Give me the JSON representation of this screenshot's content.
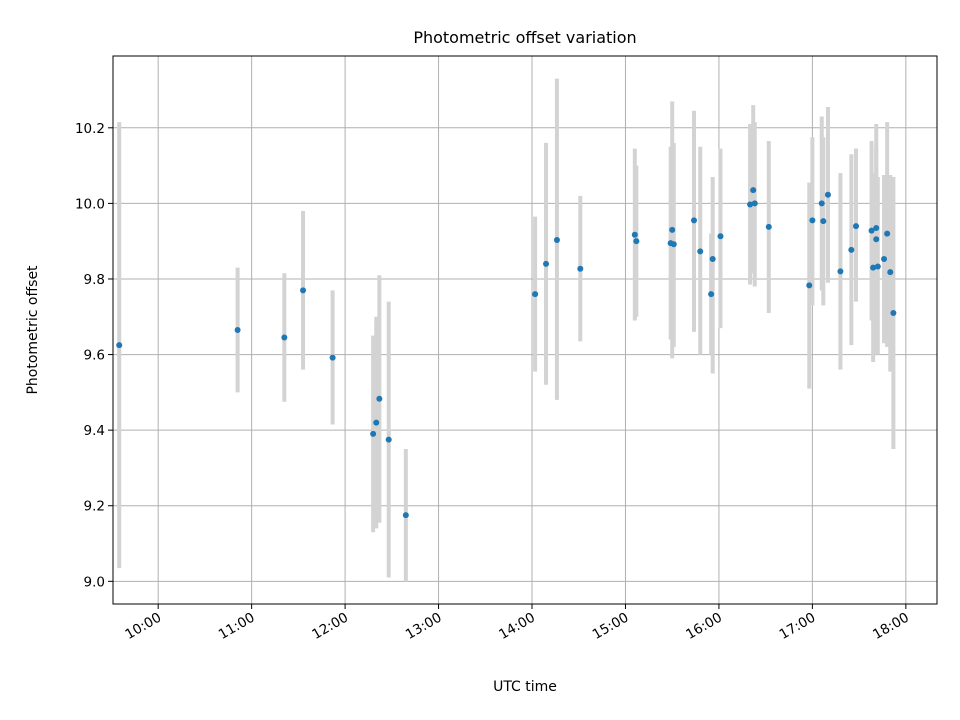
{
  "chart_data": {
    "type": "scatter",
    "title": "Photometric offset variation",
    "xlabel": "UTC time",
    "ylabel": "Photometric offset",
    "x_axis": "time",
    "x_range": [
      "09:31",
      "18:20"
    ],
    "ylim": [
      8.94,
      10.39
    ],
    "grid": true,
    "xticks": [
      "10:00",
      "11:00",
      "12:00",
      "13:00",
      "14:00",
      "15:00",
      "16:00",
      "17:00",
      "18:00"
    ],
    "yticks": [
      "9.0",
      "9.2",
      "9.4",
      "9.6",
      "9.8",
      "10.0",
      "10.2"
    ],
    "colors": {
      "points": "#1f77b4",
      "error_bars": "#d3d3d3",
      "grid": "#b0b0b0"
    },
    "series": [
      {
        "points": [
          {
            "x": "09:35",
            "y": 9.625,
            "lo": 9.035,
            "hi": 10.215
          },
          {
            "x": "10:51",
            "y": 9.665,
            "lo": 9.5,
            "hi": 9.83
          },
          {
            "x": "11:21",
            "y": 9.645,
            "lo": 9.475,
            "hi": 9.815
          },
          {
            "x": "11:33",
            "y": 9.77,
            "lo": 9.56,
            "hi": 9.98
          },
          {
            "x": "11:52",
            "y": 9.592,
            "lo": 9.415,
            "hi": 9.77
          },
          {
            "x": "12:18",
            "y": 9.39,
            "lo": 9.13,
            "hi": 9.65
          },
          {
            "x": "12:20",
            "y": 9.42,
            "lo": 9.14,
            "hi": 9.7
          },
          {
            "x": "12:22",
            "y": 9.483,
            "lo": 9.155,
            "hi": 9.81
          },
          {
            "x": "12:28",
            "y": 9.375,
            "lo": 9.01,
            "hi": 9.74
          },
          {
            "x": "12:39",
            "y": 9.175,
            "lo": 9.0,
            "hi": 9.35
          },
          {
            "x": "14:02",
            "y": 9.76,
            "lo": 9.555,
            "hi": 9.965
          },
          {
            "x": "14:09",
            "y": 9.84,
            "lo": 9.52,
            "hi": 10.16
          },
          {
            "x": "14:16",
            "y": 9.903,
            "lo": 9.48,
            "hi": 10.33
          },
          {
            "x": "14:31",
            "y": 9.827,
            "lo": 9.635,
            "hi": 10.02
          },
          {
            "x": "15:06",
            "y": 9.917,
            "lo": 9.69,
            "hi": 10.145
          },
          {
            "x": "15:07",
            "y": 9.9,
            "lo": 9.7,
            "hi": 10.1
          },
          {
            "x": "15:29",
            "y": 9.895,
            "lo": 9.64,
            "hi": 10.15
          },
          {
            "x": "15:30",
            "y": 9.93,
            "lo": 9.59,
            "hi": 10.27
          },
          {
            "x": "15:31",
            "y": 9.892,
            "lo": 9.62,
            "hi": 10.16
          },
          {
            "x": "15:44",
            "y": 9.955,
            "lo": 9.66,
            "hi": 10.245
          },
          {
            "x": "15:48",
            "y": 9.873,
            "lo": 9.6,
            "hi": 10.15
          },
          {
            "x": "15:55",
            "y": 9.76,
            "lo": 9.6,
            "hi": 9.92
          },
          {
            "x": "15:56",
            "y": 9.853,
            "lo": 9.55,
            "hi": 10.07
          },
          {
            "x": "16:01",
            "y": 9.913,
            "lo": 9.67,
            "hi": 10.145
          },
          {
            "x": "16:20",
            "y": 9.997,
            "lo": 9.785,
            "hi": 10.21
          },
          {
            "x": "16:22",
            "y": 10.035,
            "lo": 9.815,
            "hi": 10.26
          },
          {
            "x": "16:23",
            "y": 10.0,
            "lo": 9.78,
            "hi": 10.215
          },
          {
            "x": "16:32",
            "y": 9.938,
            "lo": 9.71,
            "hi": 10.165
          },
          {
            "x": "16:58",
            "y": 9.783,
            "lo": 9.51,
            "hi": 10.055
          },
          {
            "x": "17:00",
            "y": 9.955,
            "lo": 9.73,
            "hi": 10.175
          },
          {
            "x": "17:06",
            "y": 10.0,
            "lo": 9.77,
            "hi": 10.23
          },
          {
            "x": "17:07",
            "y": 9.953,
            "lo": 9.73,
            "hi": 10.175
          },
          {
            "x": "17:10",
            "y": 10.023,
            "lo": 9.79,
            "hi": 10.255
          },
          {
            "x": "17:18",
            "y": 9.82,
            "lo": 9.56,
            "hi": 10.08
          },
          {
            "x": "17:25",
            "y": 9.877,
            "lo": 9.625,
            "hi": 10.13
          },
          {
            "x": "17:28",
            "y": 9.94,
            "lo": 9.74,
            "hi": 10.145
          },
          {
            "x": "17:38",
            "y": 9.928,
            "lo": 9.69,
            "hi": 10.165
          },
          {
            "x": "17:39",
            "y": 9.83,
            "lo": 9.58,
            "hi": 10.08
          },
          {
            "x": "17:41",
            "y": 9.905,
            "lo": 9.6,
            "hi": 10.21
          },
          {
            "x": "17:41",
            "y": 9.935,
            "lo": 9.69,
            "hi": 10.15
          },
          {
            "x": "17:42",
            "y": 9.833,
            "lo": 9.6,
            "hi": 10.07
          },
          {
            "x": "17:46",
            "y": 9.853,
            "lo": 9.63,
            "hi": 10.075
          },
          {
            "x": "17:48",
            "y": 9.92,
            "lo": 9.62,
            "hi": 10.215
          },
          {
            "x": "17:50",
            "y": 9.818,
            "lo": 9.555,
            "hi": 10.075
          },
          {
            "x": "17:52",
            "y": 9.71,
            "lo": 9.35,
            "hi": 10.07
          }
        ]
      }
    ]
  }
}
